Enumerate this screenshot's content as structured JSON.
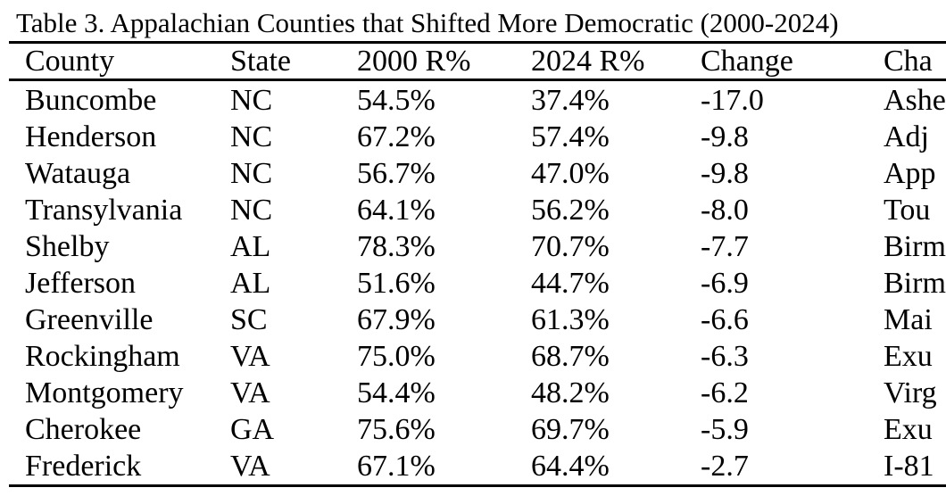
{
  "page": {
    "caption": "Table 3. Appalachian Counties that Shifted More Democratic (2000-2024)"
  },
  "table": {
    "columns": [
      "County",
      "State",
      "2000 R%",
      "2024 R%",
      "Change",
      "Cha"
    ],
    "last_column_clipped_by_viewport": true,
    "rows": [
      {
        "county": "Buncombe",
        "state": "NC",
        "r2000": "54.5%",
        "r2024": "37.4%",
        "change": "-17.0",
        "note": "Ashe"
      },
      {
        "county": "Henderson",
        "state": "NC",
        "r2000": "67.2%",
        "r2024": "57.4%",
        "change": "-9.8",
        "note": "Adj"
      },
      {
        "county": "Watauga",
        "state": "NC",
        "r2000": "56.7%",
        "r2024": "47.0%",
        "change": "-9.8",
        "note": "App"
      },
      {
        "county": "Transylvania",
        "state": "NC",
        "r2000": "64.1%",
        "r2024": "56.2%",
        "change": "-8.0",
        "note": "Tou"
      },
      {
        "county": "Shelby",
        "state": "AL",
        "r2000": "78.3%",
        "r2024": "70.7%",
        "change": "-7.7",
        "note": "Birm"
      },
      {
        "county": "Jefferson",
        "state": "AL",
        "r2000": "51.6%",
        "r2024": "44.7%",
        "change": "-6.9",
        "note": "Birm"
      },
      {
        "county": "Greenville",
        "state": "SC",
        "r2000": "67.9%",
        "r2024": "61.3%",
        "change": "-6.6",
        "note": "Mai"
      },
      {
        "county": "Rockingham",
        "state": "VA",
        "r2000": "75.0%",
        "r2024": "68.7%",
        "change": "-6.3",
        "note": "Exu"
      },
      {
        "county": "Montgomery",
        "state": "VA",
        "r2000": "54.4%",
        "r2024": "48.2%",
        "change": "-6.2",
        "note": "Virg"
      },
      {
        "county": "Cherokee",
        "state": "GA",
        "r2000": "75.6%",
        "r2024": "69.7%",
        "change": "-5.9",
        "note": "Exu"
      },
      {
        "county": "Frederick",
        "state": "VA",
        "r2000": "67.1%",
        "r2024": "64.4%",
        "change": "-2.7",
        "note": "I-81"
      }
    ]
  },
  "colors": {
    "text": "#000000",
    "background": "#ffffff",
    "rule": "#000000"
  }
}
